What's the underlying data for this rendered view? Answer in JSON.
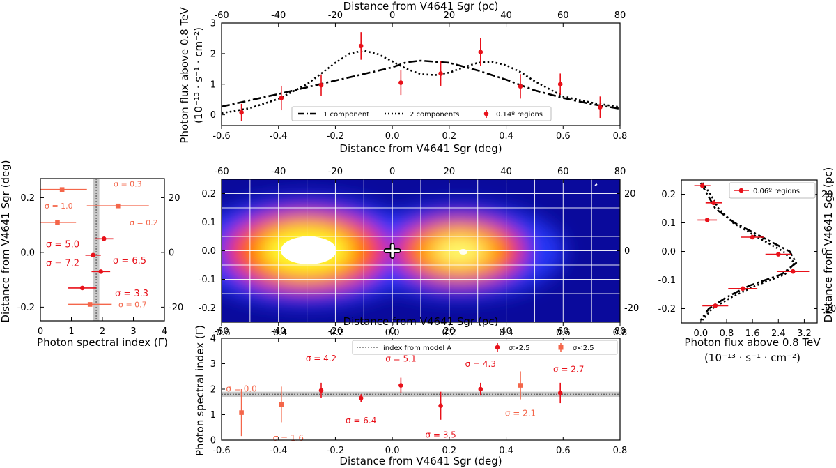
{
  "chart_data": [
    {
      "type": "scatter",
      "panel": "top",
      "xlabel": "Distance from V4641 Sgr (deg)",
      "x2label": "Distance from V4641 Sgr (pc)",
      "ylabel_line1": "Photon flux above 0.8 TeV",
      "ylabel_line2": "(10⁻¹³ · s⁻¹ · cm⁻²)",
      "xlim": [
        -0.6,
        0.8
      ],
      "ylim": [
        -0.35,
        3
      ],
      "xticks": [
        "-0.6",
        "-0.4",
        "-0.2",
        "0.0",
        "0.2",
        "0.4",
        "0.6",
        "0.8"
      ],
      "x2ticks": [
        "-60",
        "-40",
        "-20",
        "0",
        "20",
        "40",
        "60",
        "80"
      ],
      "yticks": [
        "0",
        "1",
        "2",
        "3"
      ],
      "legend": [
        "1 component",
        "2 components",
        "0.14º regions"
      ],
      "series": [
        {
          "name": "0.14º regions",
          "x": [
            -0.53,
            -0.39,
            -0.25,
            -0.11,
            0.03,
            0.17,
            0.31,
            0.45,
            0.59,
            0.73
          ],
          "y": [
            0.08,
            0.55,
            0.97,
            2.25,
            1.05,
            1.35,
            2.05,
            0.93,
            1.0,
            0.25
          ],
          "yerr": [
            0.28,
            0.4,
            0.35,
            0.45,
            0.4,
            0.4,
            0.45,
            0.4,
            0.35,
            0.35
          ]
        },
        {
          "name": "1 component",
          "x": [
            -0.6,
            -0.4,
            -0.2,
            0.0,
            0.05,
            0.1,
            0.2,
            0.3,
            0.4,
            0.5,
            0.6,
            0.7,
            0.8
          ],
          "y": [
            0.27,
            0.68,
            1.12,
            1.55,
            1.72,
            1.77,
            1.7,
            1.45,
            1.15,
            0.8,
            0.55,
            0.35,
            0.2
          ]
        },
        {
          "name": "2 components",
          "x": [
            -0.6,
            -0.5,
            -0.4,
            -0.3,
            -0.2,
            -0.15,
            -0.1,
            -0.05,
            0.0,
            0.05,
            0.1,
            0.15,
            0.2,
            0.25,
            0.3,
            0.35,
            0.4,
            0.45,
            0.5,
            0.6,
            0.7,
            0.8
          ],
          "y": [
            0.05,
            0.22,
            0.52,
            1.0,
            1.7,
            2.0,
            2.1,
            1.98,
            1.75,
            1.5,
            1.33,
            1.3,
            1.38,
            1.55,
            1.7,
            1.73,
            1.62,
            1.4,
            1.1,
            0.6,
            0.4,
            0.25
          ]
        }
      ]
    },
    {
      "type": "heatmap",
      "panel": "middle",
      "xlim": [
        -0.6,
        0.8
      ],
      "ylim": [
        -0.25,
        0.25
      ],
      "xticks": [
        "-0.6",
        "-0.4",
        "-0.2",
        "0.0",
        "0.2",
        "0.4",
        "0.6",
        "0.8"
      ],
      "x2ticks": [
        "-60",
        "-40",
        "-20",
        "0",
        "20",
        "40",
        "60",
        "80"
      ],
      "yticks": [
        "-0.2",
        "-0.1",
        "0.0",
        "0.1",
        "0.2"
      ],
      "y2ticks": [
        "-20",
        "0",
        "20"
      ],
      "hotspots": [
        {
          "x": -0.18,
          "y": 0.0,
          "level": 1.0
        },
        {
          "x": 0.26,
          "y": -0.01,
          "level": 0.8
        }
      ],
      "marker": {
        "x": 0.0,
        "y": 0.0,
        "symbol": "cross"
      }
    },
    {
      "type": "scatter",
      "panel": "left",
      "xlabel": "Photon spectral index (Γ)",
      "ylabel": "Distance from V4641 Sgr (deg)",
      "xlim": [
        0,
        4
      ],
      "ylim": [
        -0.25,
        0.27
      ],
      "xticks": [
        "0",
        "1",
        "2",
        "3",
        "4"
      ],
      "yticks": [
        "-0.2",
        "0.0",
        "0.2"
      ],
      "y2ticks": [
        "-20",
        "0",
        "20"
      ],
      "band": {
        "center": 1.8,
        "halfwidth": 0.1
      },
      "points": [
        {
          "y": 0.23,
          "x": 0.7,
          "xerr": 0.8,
          "sigma": "σ = 0.3",
          "significant": false
        },
        {
          "y": 0.17,
          "x": 2.5,
          "xerr": 1.0,
          "sigma": "σ = 1.0",
          "significant": false
        },
        {
          "y": 0.11,
          "x": 0.55,
          "xerr": 0.6,
          "sigma": "σ = 0.2",
          "significant": false
        },
        {
          "y": 0.05,
          "x": 2.05,
          "xerr": 0.3,
          "sigma": "σ = 5.0",
          "significant": true
        },
        {
          "y": -0.01,
          "x": 1.7,
          "xerr": 0.25,
          "sigma": "σ = 6.5",
          "significant": true
        },
        {
          "y": -0.07,
          "x": 1.95,
          "xerr": 0.3,
          "sigma": "σ = 7.2",
          "significant": true
        },
        {
          "y": -0.13,
          "x": 1.35,
          "xerr": 0.45,
          "sigma": "σ = 3.3",
          "significant": true
        },
        {
          "y": -0.19,
          "x": 1.6,
          "xerr": 0.7,
          "sigma": "σ = 0.7",
          "significant": false
        }
      ]
    },
    {
      "type": "scatter",
      "panel": "right",
      "xlabel_line1": "Photon flux above 0.8 TeV",
      "xlabel_line2": "(10⁻¹³ · s⁻¹ · cm⁻²)",
      "y2label": "Distance from V4641 Sgr (pc)",
      "xlim": [
        -0.6,
        3.6
      ],
      "ylim": [
        -0.25,
        0.25
      ],
      "xticks": [
        "0.0",
        "0.8",
        "1.6",
        "2.4",
        "3.2"
      ],
      "yticks": [
        "-0.2",
        "-0.1",
        "0.0",
        "0.1",
        "0.2"
      ],
      "y2ticks": [
        "-20",
        "0",
        "20"
      ],
      "legend": [
        "0.06º regions"
      ],
      "points": [
        {
          "y": 0.23,
          "x": 0.05,
          "xerr": 0.25
        },
        {
          "y": 0.17,
          "x": 0.4,
          "xerr": 0.25
        },
        {
          "y": 0.11,
          "x": 0.2,
          "xerr": 0.3
        },
        {
          "y": 0.05,
          "x": 1.6,
          "xerr": 0.35
        },
        {
          "y": -0.01,
          "x": 2.4,
          "xerr": 0.4
        },
        {
          "y": -0.07,
          "x": 2.85,
          "xerr": 0.5
        },
        {
          "y": -0.13,
          "x": 1.3,
          "xerr": 0.45
        },
        {
          "y": -0.19,
          "x": 0.45,
          "xerr": 0.4
        }
      ],
      "curves": [
        {
          "name": "1 component",
          "y": [
            0.24,
            0.2,
            0.15,
            0.1,
            0.05,
            0.0,
            -0.04,
            -0.08,
            -0.12,
            -0.16,
            -0.2,
            -0.24
          ],
          "x": [
            0.0,
            0.2,
            0.45,
            1.05,
            1.9,
            2.75,
            2.95,
            2.5,
            1.5,
            0.8,
            0.25,
            0.0
          ]
        },
        {
          "name": "2 components",
          "y": [
            0.24,
            0.2,
            0.15,
            0.1,
            0.05,
            0.0,
            -0.04,
            -0.08,
            -0.12,
            -0.16,
            -0.2,
            -0.24
          ],
          "x": [
            0.05,
            0.3,
            0.55,
            1.0,
            1.75,
            2.55,
            2.9,
            2.6,
            1.7,
            0.95,
            0.35,
            0.05
          ]
        }
      ]
    },
    {
      "type": "scatter",
      "panel": "bottom",
      "xlabel": "Distance from V4641 Sgr (deg)",
      "x2label": "Distance from V4641 Sgr (pc)",
      "ylabel": "Photon spectral index (Γ)",
      "xlim": [
        -0.6,
        0.8
      ],
      "ylim": [
        0,
        4
      ],
      "xticks": [
        "-0.6",
        "-0.4",
        "-0.2",
        "0.0",
        "0.2",
        "0.4",
        "0.6",
        "0.8"
      ],
      "x2ticks": [
        "-60",
        "-40",
        "-20",
        "0",
        "20",
        "40",
        "60",
        "80"
      ],
      "yticks": [
        "0",
        "1",
        "2",
        "3",
        "4"
      ],
      "legend": [
        "index from model A",
        "σ>2.5",
        "σ<2.5"
      ],
      "band": {
        "center": 1.8,
        "halfwidth": 0.1
      },
      "points": [
        {
          "x": -0.53,
          "y": 1.08,
          "yerr": 0.92,
          "sigma": "σ = 0.0",
          "significant": false
        },
        {
          "x": -0.39,
          "y": 1.4,
          "yerr": 0.7,
          "sigma": "σ = 1.6",
          "significant": false
        },
        {
          "x": -0.25,
          "y": 1.95,
          "yerr": 0.3,
          "sigma": "σ = 4.2",
          "significant": true
        },
        {
          "x": -0.11,
          "y": 1.65,
          "yerr": 0.15,
          "sigma": "σ = 6.4",
          "significant": true
        },
        {
          "x": 0.03,
          "y": 2.15,
          "yerr": 0.3,
          "sigma": "σ = 5.1",
          "significant": true
        },
        {
          "x": 0.17,
          "y": 1.35,
          "yerr": 0.55,
          "sigma": "σ = 3.5",
          "significant": true
        },
        {
          "x": 0.31,
          "y": 2.0,
          "yerr": 0.25,
          "sigma": "σ = 4.3",
          "significant": true
        },
        {
          "x": 0.45,
          "y": 2.15,
          "yerr": 0.55,
          "sigma": "σ = 2.1",
          "significant": false
        },
        {
          "x": 0.59,
          "y": 1.85,
          "yerr": 0.4,
          "sigma": "σ = 2.7",
          "significant": true
        }
      ]
    }
  ],
  "colors": {
    "significant": "#e8111a",
    "insignificant": "#f4664a",
    "band": "#c8c8c8"
  }
}
